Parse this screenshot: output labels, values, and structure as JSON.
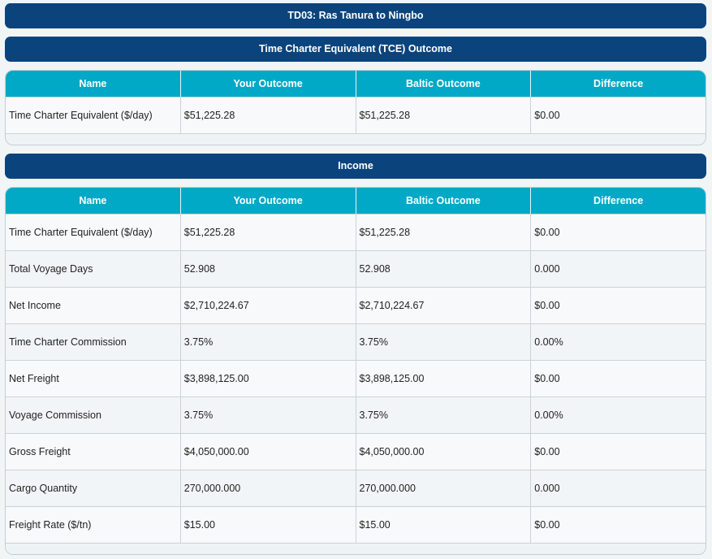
{
  "header": {
    "title": "TD03: Ras Tanura to Ningbo"
  },
  "sections": [
    {
      "title": "Time Charter Equivalent (TCE) Outcome",
      "table": {
        "columns": [
          "Name",
          "Your Outcome",
          "Baltic Outcome",
          "Difference"
        ],
        "rows": [
          [
            "Time Charter Equivalent ($/day)",
            "$51,225.28",
            "$51,225.28",
            "$0.00"
          ]
        ]
      }
    },
    {
      "title": "Income",
      "table": {
        "columns": [
          "Name",
          "Your Outcome",
          "Baltic Outcome",
          "Difference"
        ],
        "rows": [
          [
            "Time Charter Equivalent ($/day)",
            "$51,225.28",
            "$51,225.28",
            "$0.00"
          ],
          [
            "Total Voyage Days",
            "52.908",
            "52.908",
            "0.000"
          ],
          [
            "Net Income",
            "$2,710,224.67",
            "$2,710,224.67",
            "$0.00"
          ],
          [
            "Time Charter Commission",
            "3.75%",
            "3.75%",
            "0.00%"
          ],
          [
            "Net Freight",
            "$3,898,125.00",
            "$3,898,125.00",
            "$0.00"
          ],
          [
            "Voyage Commission",
            "3.75%",
            "3.75%",
            "0.00%"
          ],
          [
            "Gross Freight",
            "$4,050,000.00",
            "$4,050,000.00",
            "$0.00"
          ],
          [
            "Cargo Quantity",
            "270,000.000",
            "270,000.000",
            "0.000"
          ],
          [
            "Freight Rate ($/tn)",
            "$15.00",
            "$15.00",
            "$0.00"
          ]
        ]
      }
    }
  ]
}
